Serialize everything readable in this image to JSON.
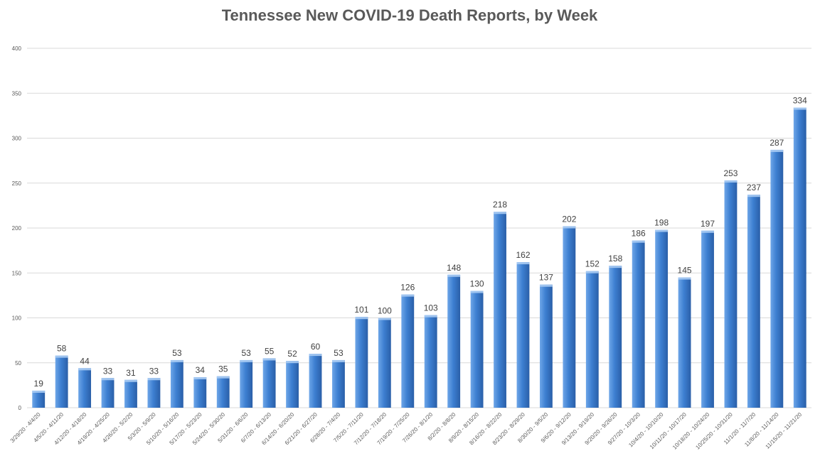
{
  "chart_data": {
    "type": "bar",
    "title": "Tennessee New COVID-19 Death Reports, by Week",
    "xlabel": "",
    "ylabel": "",
    "ylim": [
      0,
      400
    ],
    "yticks": [
      0,
      50,
      100,
      150,
      200,
      250,
      300,
      350,
      400
    ],
    "grid": true,
    "legend": "none",
    "colors": {
      "bar_light": "#6ea6e8",
      "bar_mid": "#3d7fd1",
      "bar_dark": "#2a5fa8",
      "bar_cap": "#a9cbf3"
    },
    "categories": [
      "3/29/20 - 4/4/20",
      "4/5/20 - 4/11/20",
      "4/12/20 - 4/18/20",
      "4/19/20 - 4/25/20",
      "4/26/20 - 5/2/20",
      "5/3/20 - 5/9/20",
      "5/10/20 - 5/16/20",
      "5/17/20 - 5/23/20",
      "5/24/20 - 5/30/20",
      "5/31/20 - 6/6/20",
      "6/7/20 - 6/13/20",
      "6/14/20 - 6/20/20",
      "6/21/20 - 6/27/20",
      "6/28/20 - 7/4/20",
      "7/5/20 - 7/11/20",
      "7/12/20 - 7/18/20",
      "7/19/20 - 7/25/20",
      "7/26/20 - 8/1/20",
      "8/2/20 - 8/8/20",
      "8/9/20 - 8/15/20",
      "8/16/20 - 8/22/20",
      "8/23/20 - 8/29/20",
      "8/30/20 - 9/5/20",
      "9/6/20 - 9/12/20",
      "9/13/20 - 9/19/20",
      "9/20/20 - 9/26/20",
      "9/27/20 - 10/3/20",
      "10/4/20 - 10/10/20",
      "10/11/20 - 10/17/20",
      "10/18/20 - 10/24/20",
      "10/25/20 - 10/31/20",
      "11/1/20 - 11/7/20",
      "11/8/20 - 11/14/20",
      "11/15/20 - 11/21/20"
    ],
    "values": [
      19,
      58,
      44,
      33,
      31,
      33,
      53,
      34,
      35,
      53,
      55,
      52,
      60,
      53,
      101,
      100,
      126,
      103,
      148,
      130,
      218,
      162,
      137,
      202,
      152,
      158,
      186,
      198,
      145,
      197,
      253,
      237,
      287,
      334
    ]
  }
}
